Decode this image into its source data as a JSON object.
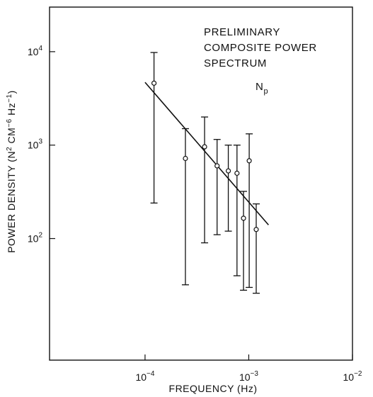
{
  "chart_data": {
    "type": "scatter",
    "title_lines": [
      "PRELIMINARY",
      "COMPOSITE POWER",
      "SPECTRUM"
    ],
    "annotation": {
      "base": "N",
      "subscript": "p"
    },
    "xlabel": "FREQUENCY (Hz)",
    "ylabel": {
      "parts": [
        {
          "text": "POWER DENSITY (N"
        },
        {
          "text": "2",
          "sup": true
        },
        {
          "text": " CM"
        },
        {
          "text": "−6",
          "sup": true
        },
        {
          "text": " Hz"
        },
        {
          "text": "−1",
          "sup": true
        },
        {
          "text": ")"
        }
      ]
    },
    "x_scale": "log",
    "y_scale": "log",
    "xlim": [
      1.2e-05,
      0.01
    ],
    "ylim": [
      5,
      30000
    ],
    "x_ticks": [
      {
        "value": 0.0001,
        "base": "10",
        "exp": "−4"
      },
      {
        "value": 0.001,
        "base": "10",
        "exp": "−3"
      },
      {
        "value": 0.01,
        "base": "10",
        "exp": "−2"
      }
    ],
    "y_ticks": [
      {
        "value": 100,
        "base": "10",
        "exp": "2"
      },
      {
        "value": 1000,
        "base": "10",
        "exp": "3"
      },
      {
        "value": 10000,
        "base": "10",
        "exp": "4"
      }
    ],
    "grid": false,
    "points": [
      {
        "x": 0.000122,
        "y": 4600,
        "err_low": 240,
        "err_high": 9800
      },
      {
        "x": 0.000245,
        "y": 720,
        "err_low": 32,
        "err_high": 1500
      },
      {
        "x": 0.000375,
        "y": 960,
        "err_low": 90,
        "err_high": 2000
      },
      {
        "x": 0.000495,
        "y": 600,
        "err_low": 110,
        "err_high": 1150
      },
      {
        "x": 0.000635,
        "y": 530,
        "err_low": 120,
        "err_high": 1000
      },
      {
        "x": 0.00077,
        "y": 500,
        "err_low": 40,
        "err_high": 1000
      },
      {
        "x": 0.00089,
        "y": 165,
        "err_low": 28,
        "err_high": 320
      },
      {
        "x": 0.00101,
        "y": 680,
        "err_low": 30,
        "err_high": 1320
      },
      {
        "x": 0.00118,
        "y": 125,
        "err_low": 26,
        "err_high": 235
      }
    ],
    "fit_line": [
      {
        "x": 0.0001,
        "y": 4700
      },
      {
        "x": 0.00155,
        "y": 140
      }
    ]
  }
}
